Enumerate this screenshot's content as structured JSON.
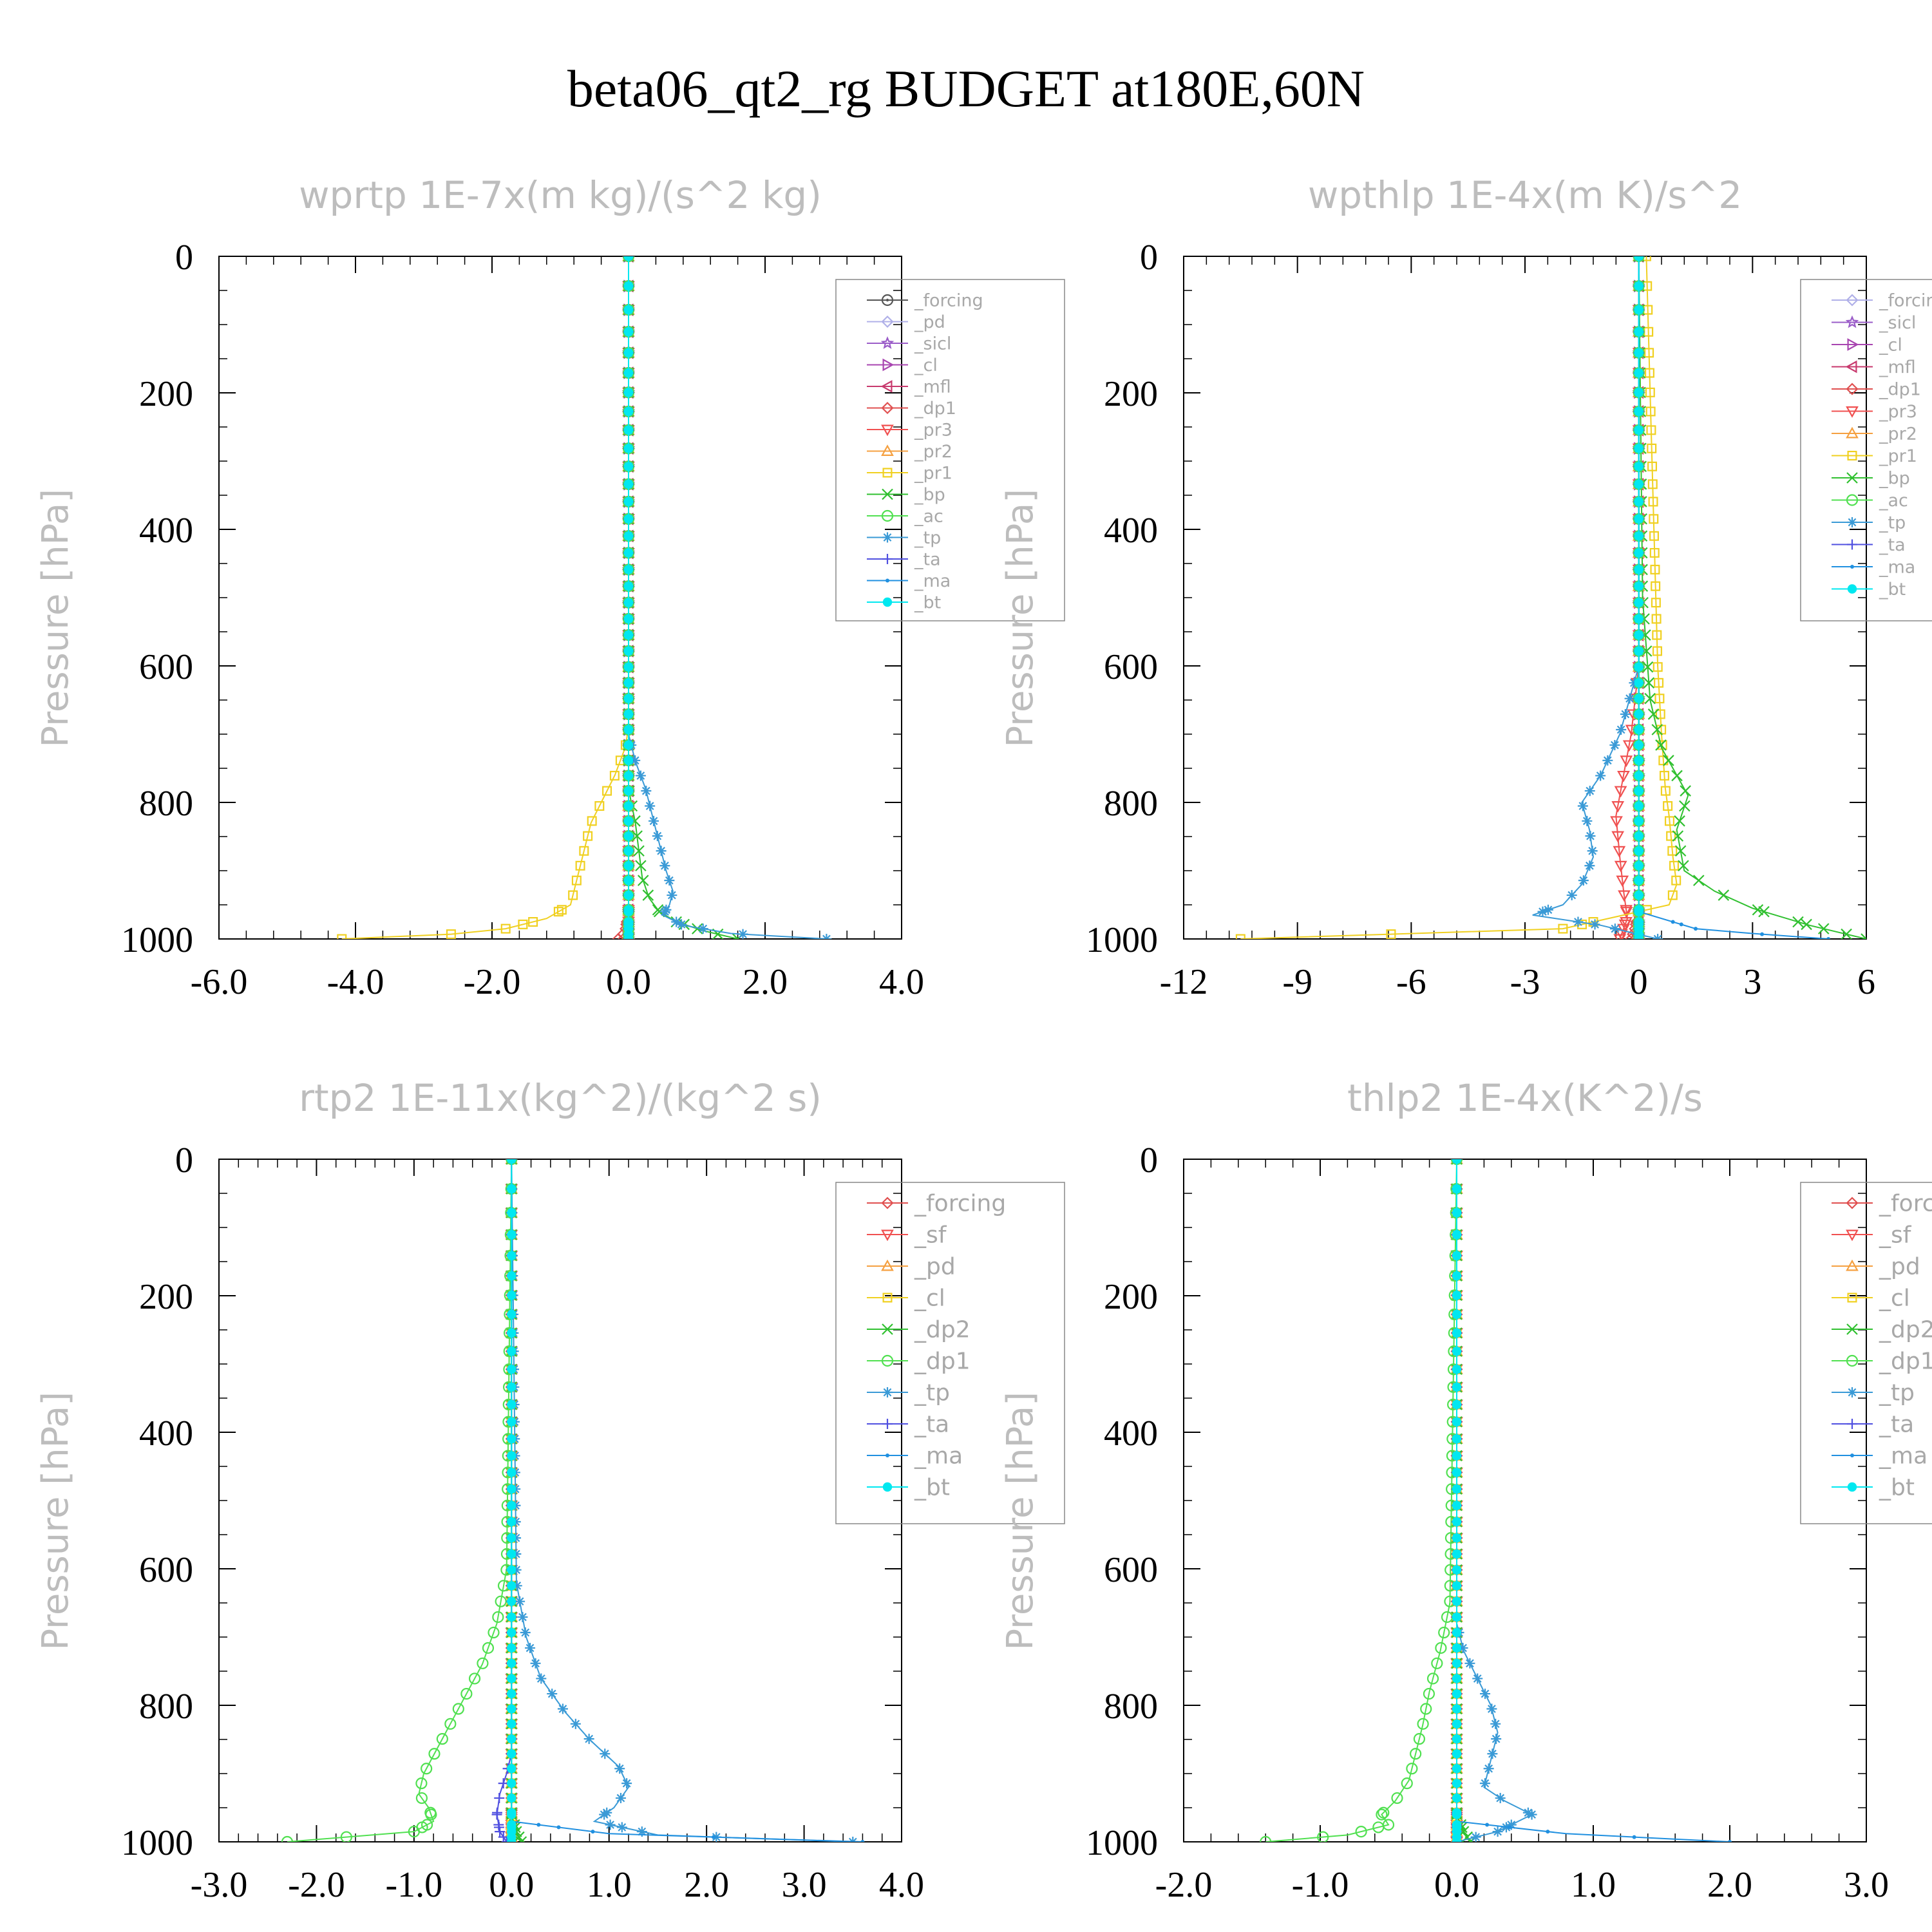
{
  "figure": {
    "title": "beta06_qt2_rg  BUDGET at180E,60N"
  },
  "chart_data": [
    {
      "type": "line",
      "title": "wprtp   1E-7x(m kg)/(s^2 kg)",
      "ylabel": "Pressure [hPa]",
      "xlabel": "",
      "xlim": [
        -6.0,
        4.0
      ],
      "ylim": [
        1000,
        0
      ],
      "xticks": [
        "-6.0",
        "-4.0",
        "-2.0",
        "0.0",
        "2.0",
        "4.0"
      ],
      "yticks": [
        "0",
        "200",
        "400",
        "600",
        "800",
        "1000"
      ],
      "grid": false,
      "legend_position": "top-right",
      "series": [
        {
          "name": "_forcing",
          "color": "#555555",
          "marker": "circle-dot",
          "x": [
            0.0,
            0.0
          ],
          "y": [
            0,
            1000
          ]
        },
        {
          "name": "_pd",
          "color": "#b0b0e8",
          "marker": "diamond",
          "x": [
            0.0,
            0.0
          ],
          "y": [
            0,
            1000
          ]
        },
        {
          "name": "_sicl",
          "color": "#9a5cc8",
          "marker": "star",
          "x": [
            0.0,
            0.0
          ],
          "y": [
            0,
            1000
          ]
        },
        {
          "name": "_cl",
          "color": "#a845b0",
          "marker": "tri-right",
          "x": [
            0.0,
            0.0
          ],
          "y": [
            0,
            1000
          ]
        },
        {
          "name": "_mfl",
          "color": "#c83a6e",
          "marker": "tri-left",
          "x": [
            0.0,
            0.0
          ],
          "y": [
            0,
            1000
          ]
        },
        {
          "name": "_dp1",
          "color": "#e05050",
          "marker": "diamond",
          "x": [
            0.0,
            0.0,
            -0.05,
            -0.15
          ],
          "y": [
            0,
            960,
            990,
            1000
          ]
        },
        {
          "name": "_pr3",
          "color": "#f05050",
          "marker": "tri-down",
          "x": [
            0.0,
            0.0
          ],
          "y": [
            0,
            1000
          ]
        },
        {
          "name": "_pr2",
          "color": "#f5a040",
          "marker": "tri-up",
          "x": [
            0.0,
            0.0
          ],
          "y": [
            0,
            1000
          ]
        },
        {
          "name": "_pr1",
          "color": "#f0d020",
          "marker": "square",
          "x": [
            0.0,
            0.0,
            -0.05,
            -0.2,
            -0.4,
            -0.55,
            -0.65,
            -0.75,
            -0.85,
            -1.2,
            -1.8,
            -2.6,
            -4.2
          ],
          "y": [
            0,
            690,
            720,
            760,
            800,
            830,
            870,
            910,
            950,
            970,
            985,
            993,
            1000
          ]
        },
        {
          "name": "_bp",
          "color": "#30c030",
          "marker": "cross",
          "x": [
            0.0,
            0.0,
            0.1,
            0.15,
            0.2,
            0.3,
            0.45,
            0.7,
            1.1,
            1.6
          ],
          "y": [
            0,
            780,
            830,
            870,
            910,
            940,
            960,
            975,
            988,
            1000
          ]
        },
        {
          "name": "_ac",
          "color": "#50e050",
          "marker": "circle",
          "x": [
            0.0,
            0.0
          ],
          "y": [
            0,
            1000
          ]
        },
        {
          "name": "_tp",
          "color": "#3a9ad6",
          "marker": "asterisk",
          "x": [
            0.0,
            0.0,
            0.1,
            0.25,
            0.35,
            0.45,
            0.55,
            0.65,
            0.6,
            0.5,
            0.8,
            1.5,
            2.9
          ],
          "y": [
            0,
            700,
            740,
            780,
            820,
            860,
            900,
            930,
            950,
            965,
            980,
            992,
            1000
          ]
        },
        {
          "name": "_ta",
          "color": "#5050e0",
          "marker": "plus",
          "x": [
            0.0,
            0.0
          ],
          "y": [
            0,
            1000
          ]
        },
        {
          "name": "_ma",
          "color": "#2090e0",
          "marker": "dot",
          "x": [
            0.0,
            0.0
          ],
          "y": [
            0,
            1000
          ]
        },
        {
          "name": "_bt",
          "color": "#00e8f0",
          "marker": "big-dot",
          "x": [
            0.0,
            0.0
          ],
          "y": [
            0,
            1000
          ]
        }
      ]
    },
    {
      "type": "line",
      "title": "wpthlp   1E-4x(m K)/s^2",
      "ylabel": "Pressure [hPa]",
      "xlabel": "",
      "xlim": [
        -12,
        6
      ],
      "ylim": [
        1000,
        0
      ],
      "xticks": [
        "-12",
        "-9",
        "-6",
        "-3",
        "0",
        "3",
        "6"
      ],
      "yticks": [
        "0",
        "200",
        "400",
        "600",
        "800",
        "1000"
      ],
      "grid": false,
      "legend_position": "top-right",
      "series": [
        {
          "name": "_forcing",
          "color": "#b0b0e8",
          "marker": "diamond",
          "x": [
            0.0,
            0.0
          ],
          "y": [
            0,
            1000
          ]
        },
        {
          "name": "_sicl",
          "color": "#9a5cc8",
          "marker": "star",
          "x": [
            0.0,
            0.0
          ],
          "y": [
            0,
            1000
          ]
        },
        {
          "name": "_cl",
          "color": "#a845b0",
          "marker": "tri-right",
          "x": [
            0.0,
            0.0
          ],
          "y": [
            0,
            1000
          ]
        },
        {
          "name": "_mfl",
          "color": "#c83a6e",
          "marker": "tri-left",
          "x": [
            0.0,
            0.0
          ],
          "y": [
            0,
            1000
          ]
        },
        {
          "name": "_dp1",
          "color": "#e05050",
          "marker": "diamond",
          "x": [
            0.0,
            0.0,
            -0.1,
            -0.2
          ],
          "y": [
            0,
            960,
            985,
            1000
          ]
        },
        {
          "name": "_pr3",
          "color": "#f05050",
          "marker": "tri-down",
          "x": [
            0.0,
            0.0,
            -0.2,
            -0.4,
            -0.6,
            -0.5,
            -0.4,
            -0.3,
            -0.5
          ],
          "y": [
            0,
            600,
            700,
            760,
            820,
            880,
            930,
            970,
            1000
          ]
        },
        {
          "name": "_pr2",
          "color": "#f5a040",
          "marker": "tri-up",
          "x": [
            0.0,
            0.0
          ],
          "y": [
            0,
            1000
          ]
        },
        {
          "name": "_pr1",
          "color": "#f0d020",
          "marker": "square",
          "x": [
            0.2,
            0.3,
            0.4,
            0.5,
            0.6,
            0.7,
            0.8,
            0.9,
            1.0,
            0.8,
            -2.0,
            -10.5
          ],
          "y": [
            0,
            200,
            400,
            600,
            700,
            780,
            820,
            880,
            920,
            950,
            985,
            1000
          ]
        },
        {
          "name": "_bp",
          "color": "#30c030",
          "marker": "cross",
          "x": [
            0.0,
            0.1,
            0.3,
            0.6,
            1.0,
            1.3,
            1.0,
            1.2,
            2.0,
            3.0,
            4.5,
            6.0
          ],
          "y": [
            0,
            500,
            650,
            720,
            760,
            790,
            840,
            900,
            930,
            955,
            980,
            1000
          ]
        },
        {
          "name": "_ac",
          "color": "#50e050",
          "marker": "circle",
          "x": [
            0.0,
            0.0
          ],
          "y": [
            0,
            1000
          ]
        },
        {
          "name": "_tp",
          "color": "#3a9ad6",
          "marker": "asterisk",
          "x": [
            0.0,
            0.0,
            -0.5,
            -1.0,
            -1.5,
            -1.3,
            -1.2,
            -1.5,
            -2.0,
            -2.8,
            -1.0,
            0.5
          ],
          "y": [
            0,
            600,
            700,
            760,
            800,
            840,
            880,
            920,
            950,
            965,
            980,
            1000
          ]
        },
        {
          "name": "_ta",
          "color": "#5050e0",
          "marker": "plus",
          "x": [
            0.0,
            0.0
          ],
          "y": [
            0,
            1000
          ]
        },
        {
          "name": "_ma",
          "color": "#2090e0",
          "marker": "dot",
          "x": [
            0.0,
            0.0,
            1.5,
            3.0,
            5.0
          ],
          "y": [
            0,
            960,
            985,
            992,
            1000
          ]
        },
        {
          "name": "_bt",
          "color": "#00e8f0",
          "marker": "big-dot",
          "x": [
            0.0,
            0.0
          ],
          "y": [
            0,
            1000
          ]
        }
      ]
    },
    {
      "type": "line",
      "title": "rtp2   1E-11x(kg^2)/(kg^2 s)",
      "ylabel": "Pressure [hPa]",
      "xlabel": "",
      "xlim": [
        -3.0,
        4.0
      ],
      "ylim": [
        1000,
        0
      ],
      "xticks": [
        "-3.0",
        "-2.0",
        "-1.0",
        "0.0",
        "1.0",
        "2.0",
        "3.0",
        "4.0"
      ],
      "yticks": [
        "0",
        "200",
        "400",
        "600",
        "800",
        "1000"
      ],
      "grid": false,
      "legend_position": "top-right",
      "series": [
        {
          "name": "_forcing",
          "color": "#e05050",
          "marker": "diamond",
          "x": [
            0.0,
            0.0
          ],
          "y": [
            0,
            1000
          ]
        },
        {
          "name": "_sf",
          "color": "#f05050",
          "marker": "tri-down",
          "x": [
            0.0,
            0.0
          ],
          "y": [
            0,
            1000
          ]
        },
        {
          "name": "_pd",
          "color": "#f5a040",
          "marker": "tri-up",
          "x": [
            0.0,
            0.0
          ],
          "y": [
            0,
            1000
          ]
        },
        {
          "name": "_cl",
          "color": "#f0d020",
          "marker": "square",
          "x": [
            0.0,
            0.0
          ],
          "y": [
            0,
            1000
          ]
        },
        {
          "name": "_dp2",
          "color": "#30c030",
          "marker": "cross",
          "x": [
            0.0,
            0.0,
            0.05,
            0.1
          ],
          "y": [
            0,
            960,
            985,
            1000
          ]
        },
        {
          "name": "_dp1",
          "color": "#50e050",
          "marker": "circle",
          "x": [
            0.0,
            -0.05,
            -0.15,
            -0.3,
            -0.45,
            -0.6,
            -0.75,
            -0.9,
            -0.95,
            -0.85,
            -0.8,
            -1.0,
            -2.3
          ],
          "y": [
            0,
            600,
            680,
            740,
            780,
            820,
            860,
            900,
            930,
            950,
            970,
            985,
            1000
          ]
        },
        {
          "name": "_tp",
          "color": "#3a9ad6",
          "marker": "asterisk",
          "x": [
            0.0,
            0.05,
            0.15,
            0.3,
            0.55,
            0.8,
            1.1,
            1.2,
            1.05,
            0.85,
            1.5,
            3.5
          ],
          "y": [
            0,
            620,
            700,
            760,
            810,
            850,
            890,
            920,
            950,
            970,
            990,
            1000
          ]
        },
        {
          "name": "_ta",
          "color": "#5050e0",
          "marker": "plus",
          "x": [
            0.0,
            0.0,
            -0.05,
            -0.12,
            -0.15,
            -0.12,
            -0.05
          ],
          "y": [
            0,
            870,
            900,
            930,
            960,
            985,
            1000
          ]
        },
        {
          "name": "_ma",
          "color": "#2090e0",
          "marker": "dot",
          "x": [
            0.0,
            0.0,
            1.0,
            2.5,
            3.6
          ],
          "y": [
            0,
            970,
            988,
            995,
            1000
          ]
        },
        {
          "name": "_bt",
          "color": "#00e8f0",
          "marker": "big-dot",
          "x": [
            0.0,
            0.0
          ],
          "y": [
            0,
            1000
          ]
        }
      ]
    },
    {
      "type": "line",
      "title": "thlp2   1E-4x(K^2)/s",
      "ylabel": "Pressure [hPa]",
      "xlabel": "",
      "xlim": [
        -2.0,
        3.0
      ],
      "ylim": [
        1000,
        0
      ],
      "xticks": [
        "-2.0",
        "-1.0",
        "0.0",
        "1.0",
        "2.0",
        "3.0"
      ],
      "yticks": [
        "0",
        "200",
        "400",
        "600",
        "800",
        "1000"
      ],
      "grid": false,
      "legend_position": "top-right",
      "series": [
        {
          "name": "_forcing",
          "color": "#e05050",
          "marker": "diamond",
          "x": [
            0.0,
            0.0
          ],
          "y": [
            0,
            1000
          ]
        },
        {
          "name": "_sf",
          "color": "#f05050",
          "marker": "tri-down",
          "x": [
            0.0,
            0.0
          ],
          "y": [
            0,
            1000
          ]
        },
        {
          "name": "_pd",
          "color": "#f5a040",
          "marker": "tri-up",
          "x": [
            0.0,
            0.0
          ],
          "y": [
            0,
            1000
          ]
        },
        {
          "name": "_cl",
          "color": "#f0d020",
          "marker": "square",
          "x": [
            0.0,
            0.0
          ],
          "y": [
            0,
            1000
          ]
        },
        {
          "name": "_dp2",
          "color": "#30c030",
          "marker": "cross",
          "x": [
            0.0,
            0.0,
            0.05,
            0.1
          ],
          "y": [
            0,
            960,
            985,
            1000
          ]
        },
        {
          "name": "_dp1",
          "color": "#50e050",
          "marker": "circle",
          "x": [
            0.0,
            -0.05,
            -0.12,
            -0.2,
            -0.25,
            -0.3,
            -0.35,
            -0.45,
            -0.55,
            -0.5,
            -0.8,
            -1.4
          ],
          "y": [
            0,
            650,
            720,
            780,
            830,
            870,
            910,
            940,
            960,
            975,
            990,
            1000
          ]
        },
        {
          "name": "_tp",
          "color": "#3a9ad6",
          "marker": "asterisk",
          "x": [
            0.0,
            0.0,
            0.05,
            0.15,
            0.25,
            0.3,
            0.25,
            0.2,
            0.35,
            0.55,
            0.3,
            0.0
          ],
          "y": [
            0,
            680,
            720,
            760,
            800,
            840,
            880,
            920,
            940,
            960,
            985,
            1000
          ]
        },
        {
          "name": "_ta",
          "color": "#5050e0",
          "marker": "plus",
          "x": [
            0.0,
            0.0
          ],
          "y": [
            0,
            1000
          ]
        },
        {
          "name": "_ma",
          "color": "#2090e0",
          "marker": "dot",
          "x": [
            0.0,
            0.0,
            0.8,
            1.5,
            2.0
          ],
          "y": [
            0,
            970,
            988,
            995,
            1000
          ]
        },
        {
          "name": "_bt",
          "color": "#00e8f0",
          "marker": "big-dot",
          "x": [
            0.0,
            0.0
          ],
          "y": [
            0,
            1000
          ]
        }
      ]
    }
  ]
}
